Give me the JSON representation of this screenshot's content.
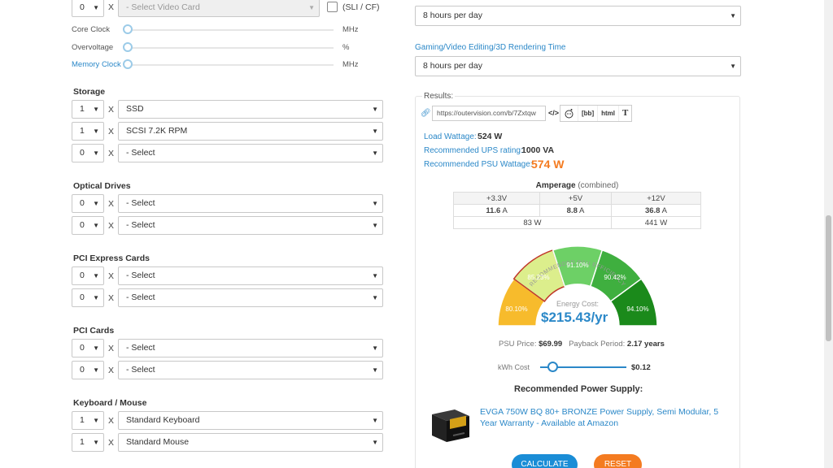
{
  "video_card": {
    "qty": "0",
    "x": "X",
    "placeholder": "- Select Video Card",
    "sli_label": "(SLI / CF)",
    "sliders": [
      {
        "label": "Core Clock",
        "unit": "MHz",
        "value": 0
      },
      {
        "label": "Overvoltage",
        "unit": "%",
        "value": 0
      },
      {
        "label": "Memory Clock",
        "unit": "MHz",
        "value": 0
      }
    ]
  },
  "storage": {
    "title": "Storage",
    "rows": [
      {
        "qty": "1",
        "value": "SSD"
      },
      {
        "qty": "1",
        "value": "SCSI 7.2K RPM"
      },
      {
        "qty": "0",
        "value": "- Select"
      }
    ]
  },
  "optical": {
    "title": "Optical Drives",
    "rows": [
      {
        "qty": "0",
        "value": "- Select"
      },
      {
        "qty": "0",
        "value": "- Select"
      }
    ]
  },
  "pcie": {
    "title": "PCI Express Cards",
    "rows": [
      {
        "qty": "0",
        "value": "- Select"
      },
      {
        "qty": "0",
        "value": "- Select"
      }
    ]
  },
  "pci": {
    "title": "PCI Cards",
    "rows": [
      {
        "qty": "0",
        "value": "- Select"
      },
      {
        "qty": "0",
        "value": "- Select"
      }
    ]
  },
  "keyboard_mouse": {
    "title": "Keyboard / Mouse",
    "rows": [
      {
        "qty": "1",
        "value": "Standard Keyboard"
      },
      {
        "qty": "1",
        "value": "Standard Mouse"
      }
    ]
  },
  "utilization": {
    "computer_value": "8 hours per day",
    "gaming_label": "Gaming/Video Editing/3D Rendering Time",
    "gaming_value": "8 hours per day"
  },
  "results": {
    "title": "Results:",
    "url": "https://outervision.com/b/7Zxtqw",
    "share": [
      "</>",
      "reddit",
      "[bb]",
      "html",
      "T"
    ],
    "load_wattage_label": "Load Wattage:",
    "load_wattage": "524 W",
    "ups_label": "Recommended UPS rating:",
    "ups": "1000 VA",
    "psu_wattage_label": "Recommended PSU Wattage:",
    "psu_wattage": "574 W",
    "amperage_title": "Amperage",
    "amperage_sub": "(combined)",
    "rails": [
      {
        "name": "+3.3V",
        "amps": "11.6",
        "unit": "A"
      },
      {
        "name": "+5V",
        "amps": "8.8",
        "unit": "A"
      },
      {
        "name": "+12V",
        "amps": "36.8",
        "unit": "A"
      }
    ],
    "rail_watts": [
      "83 W",
      "441 W"
    ],
    "gauge_title": "RECOMMENDED PSU EFFICIENCY",
    "gauge_segments": [
      "80.10%",
      "85.23%",
      "91.10%",
      "90.42%",
      "94.10%"
    ],
    "gauge_colors": [
      "#f7bb2c",
      "#c8e07a",
      "#6dd066",
      "#3faf3f",
      "#1b8a1b"
    ],
    "energy_label": "Energy Cost:",
    "energy_cost": "$215.43/yr",
    "psu_price_label": "PSU Price:",
    "psu_price": "$69.99",
    "payback_label": "Payback Period:",
    "payback": "2.17 years",
    "kwh_label": "kWh Cost",
    "kwh_value": "$0.12",
    "rec_title": "Recommended Power Supply:",
    "rec_product": "EVGA 750W BQ 80+ BRONZE Power Supply, Semi Modular, 5 Year Warranty - Available at Amazon",
    "calculate": "CALCULATE",
    "reset": "RESET"
  }
}
